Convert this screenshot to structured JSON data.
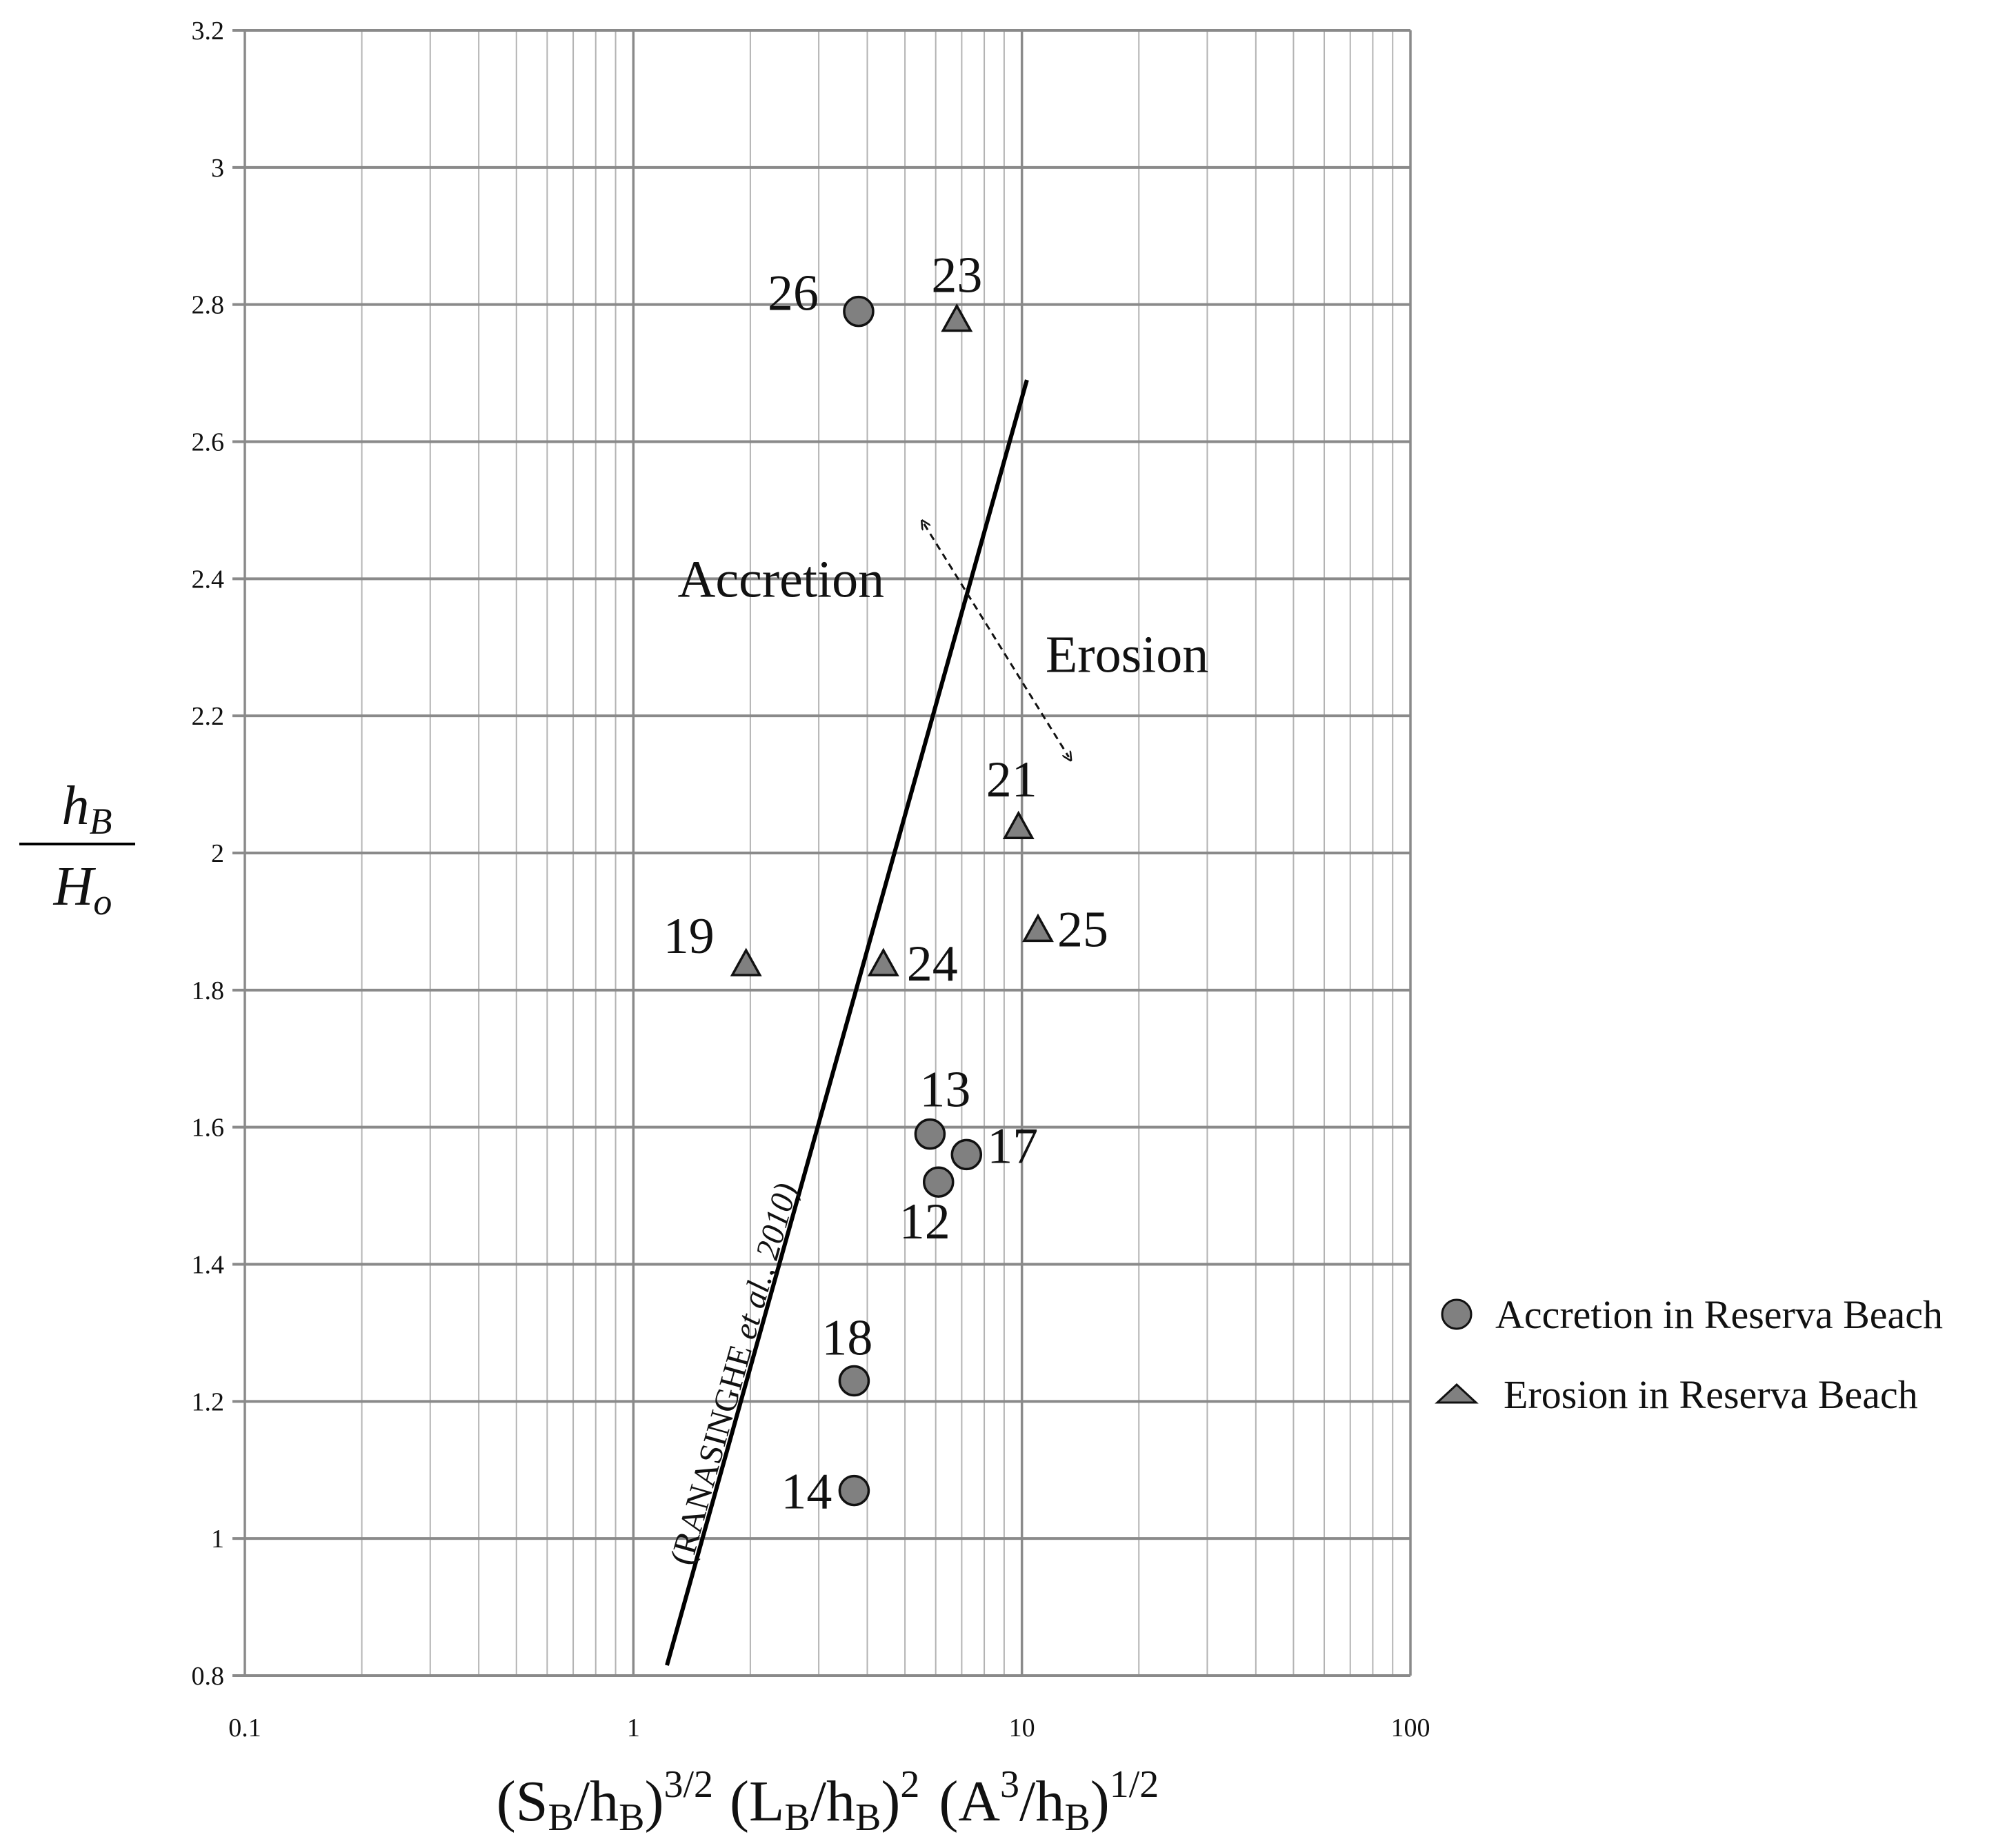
{
  "chart_data": {
    "type": "scatter",
    "title": "",
    "xscale": "log",
    "xlim": [
      0.1,
      100
    ],
    "ylim": [
      0.8,
      3.2
    ],
    "grid": true,
    "xticks": [
      "0.1",
      "1",
      "10",
      "100"
    ],
    "yticks": [
      "0.8",
      "1",
      "1.2",
      "1.4",
      "1.6",
      "1.8",
      "2",
      "2.2",
      "2.4",
      "2.6",
      "2.8",
      "3",
      "3.2"
    ],
    "ylabel": {
      "num_main": "h",
      "num_sub": "B",
      "den_main": "H",
      "den_sub": "o"
    },
    "xlabel": {
      "p1": "(S",
      "p1_sub": "B",
      "p1_mid": "/h",
      "p1_sub2": "B",
      "p1_close": ")",
      "p1_sup": "3/2",
      "p2": "(L",
      "p2_sub": "B",
      "p2_mid": "/h",
      "p2_sub2": "B",
      "p2_close": ")",
      "p2_sup": "2",
      "p3": "(A",
      "p3_sup_a": "3",
      "p3_mid": "/h",
      "p3_sub": "B",
      "p3_close": ")",
      "p3_sup": "1/2"
    },
    "series": [
      {
        "name": "Accretion in Reserva Beach",
        "marker": "circle",
        "color": "#808080",
        "points": [
          {
            "label": "26",
            "x": 3.8,
            "y": 2.79
          },
          {
            "label": "13",
            "x": 5.8,
            "y": 1.59
          },
          {
            "label": "17",
            "x": 7.2,
            "y": 1.56
          },
          {
            "label": "12",
            "x": 6.1,
            "y": 1.52
          },
          {
            "label": "18",
            "x": 3.7,
            "y": 1.23
          },
          {
            "label": "14",
            "x": 3.7,
            "y": 1.07
          }
        ]
      },
      {
        "name": "Erosion in Reserva Beach",
        "marker": "triangle",
        "color": "#808080",
        "points": [
          {
            "label": "23",
            "x": 6.8,
            "y": 2.78
          },
          {
            "label": "21",
            "x": 9.8,
            "y": 2.04
          },
          {
            "label": "25",
            "x": 11.0,
            "y": 1.89
          },
          {
            "label": "24",
            "x": 4.4,
            "y": 1.84
          },
          {
            "label": "19",
            "x": 1.95,
            "y": 1.84
          }
        ]
      }
    ],
    "fit_line": {
      "label_main": "(RANASINGHE ",
      "label_italic": "et al.",
      "label_end": ", 2010)",
      "x": [
        1.22,
        10.3
      ],
      "y": [
        0.815,
        2.69
      ]
    },
    "annotations": [
      {
        "text": "Accretion",
        "x": 1.3,
        "y": 2.4
      },
      {
        "text": "Erosion",
        "x": 11.5,
        "y": 2.29
      }
    ],
    "regime_arrow": {
      "x": [
        5.6,
        13.2
      ],
      "y": [
        2.48,
        2.14
      ]
    },
    "legend_position": "right"
  }
}
